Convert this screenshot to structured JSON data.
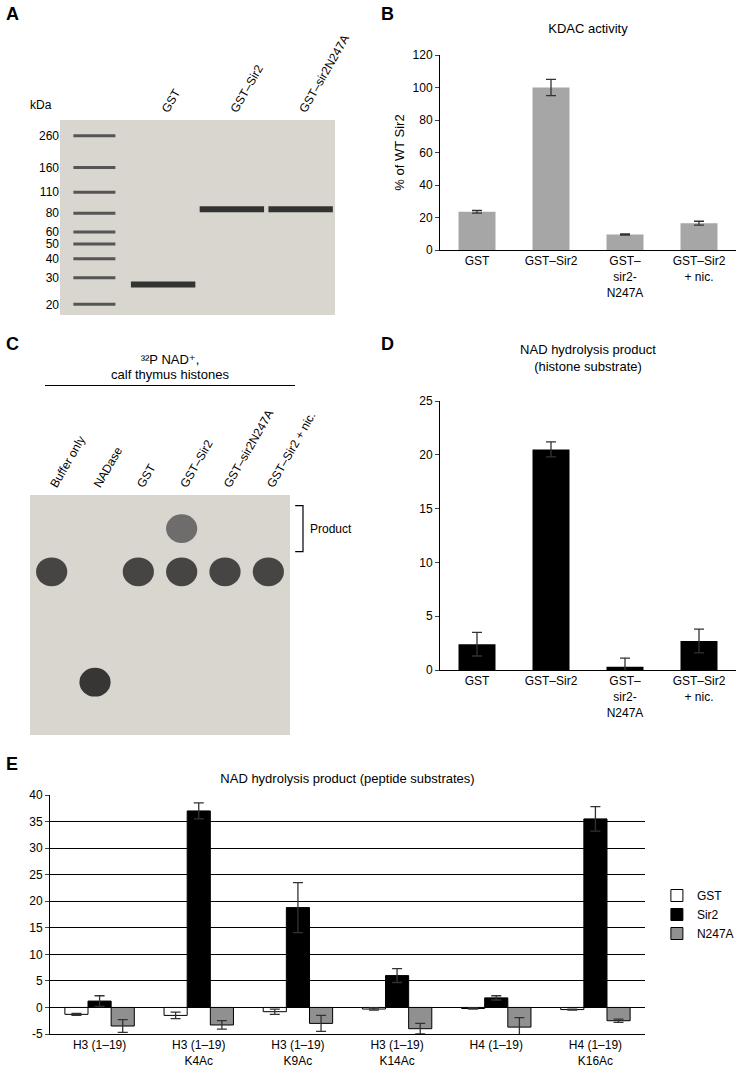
{
  "chart_data": [
    {
      "panel": "A",
      "type": "gel",
      "categories": [
        null,
        "GST",
        "GST–Sir2",
        "GST–sir2N247A"
      ],
      "values": [
        null,
        27,
        85,
        85
      ],
      "color": "#333333",
      "y_label": "kDa",
      "log": "y",
      "ylim": [
        17,
        330
      ],
      "yticks": [
        260,
        160,
        110,
        80,
        60,
        50,
        40,
        30,
        20
      ]
    },
    {
      "panel": "B",
      "type": "bar",
      "title": "KDAC activity",
      "y_label": "% of WT Sir2",
      "categories": [
        "GST",
        "GST–Sir2",
        "GST–\nsir2-\nN247A",
        "GST–Sir2\n+ nic."
      ],
      "values": [
        23.5,
        100,
        9.5,
        16.5
      ],
      "errors": [
        0.8,
        5,
        0.4,
        1.2
      ],
      "color": "#a6a6a6",
      "ylim": [
        0,
        120
      ],
      "yticks": [
        0,
        20,
        40,
        60,
        80,
        100,
        120
      ]
    },
    {
      "panel": "C",
      "type": "gel",
      "title": "³²P NAD⁺,\ncalf thymus histones",
      "categories": [
        "Buffer only",
        "NADase",
        "GST",
        "GST–Sir2",
        "GST–sir2N247A",
        "GST–Sir2 + nic."
      ],
      "series": [
        {
          "values": [
            68,
            null,
            68,
            68,
            68,
            68
          ],
          "color": "#2b2b2b"
        },
        {
          "values": [
            null,
            22,
            null,
            null,
            null,
            null
          ],
          "color": "#1a1a1a"
        },
        {
          "name": "Product",
          "values": [
            null,
            null,
            null,
            86,
            null,
            null
          ],
          "color": "#5a5a5a"
        }
      ],
      "ylim": [
        0,
        100
      ],
      "tick_labels": "x"
    },
    {
      "panel": "D",
      "type": "bar",
      "title": "NAD hydrolysis product\n(histone substrate)",
      "categories": [
        "GST",
        "GST–Sir2",
        "GST–\nsir2-\nN247A",
        "GST–Sir2\n+ nic."
      ],
      "values": [
        2.4,
        20.5,
        0.3,
        2.7
      ],
      "errors": [
        1.1,
        0.7,
        0.8,
        1.1
      ],
      "color": "#000000",
      "ylim": [
        0,
        25
      ],
      "yticks": [
        0,
        5,
        10,
        15,
        20,
        25
      ]
    },
    {
      "panel": "E",
      "type": "bar",
      "title": "NAD hydrolysis product (peptide substrates)",
      "categories": [
        "H3 (1–19)",
        "H3 (1–19)\nK4Ac",
        "H3 (1–19)\nK9Ac",
        "H3 (1–19)\nK14Ac",
        "H4 (1–19)",
        "H4 (1–19)\nK16Ac"
      ],
      "series": [
        {
          "name": "GST",
          "color": "#ffffff",
          "values": [
            -1.3,
            -1.5,
            -0.8,
            -0.3,
            -0.2,
            -0.4
          ],
          "errors": [
            0.2,
            0.6,
            0.5,
            0.2,
            0.1,
            0.1
          ]
        },
        {
          "name": "Sir2",
          "color": "#000000",
          "values": [
            1.2,
            37,
            18.8,
            6,
            1.8,
            35.5
          ],
          "errors": [
            1.0,
            1.5,
            4.7,
            1.3,
            0.4,
            2.3
          ]
        },
        {
          "name": "N247A",
          "color": "#909090",
          "values": [
            -3.5,
            -3.3,
            -3.0,
            -4.0,
            -3.7,
            -2.5
          ],
          "errors": [
            1.2,
            0.8,
            1.5,
            1.0,
            1.8,
            0.3
          ]
        }
      ],
      "ylim": [
        -5,
        40
      ],
      "yticks": [
        -5,
        0,
        5,
        10,
        15,
        20,
        25,
        30,
        35,
        40
      ],
      "grid": true,
      "legend": "right"
    }
  ]
}
